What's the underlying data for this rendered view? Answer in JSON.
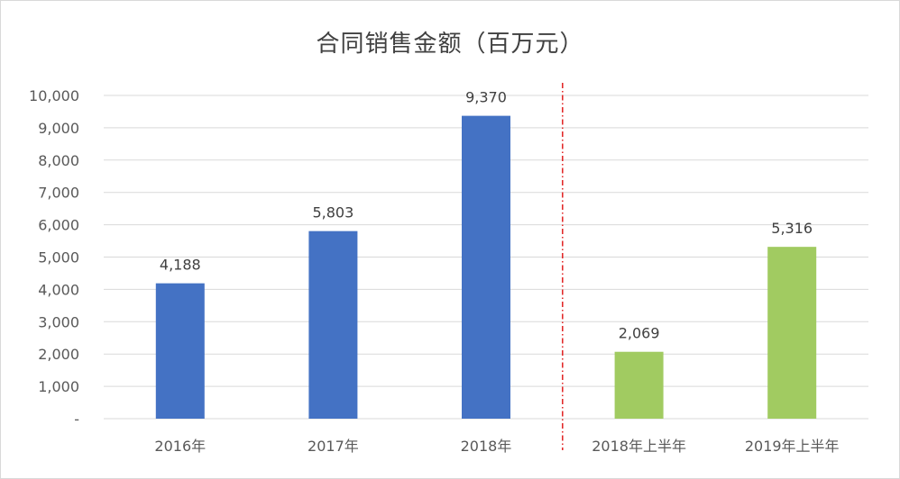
{
  "chart_data": {
    "type": "bar",
    "title": "合同销售金额（百万元）",
    "categories": [
      "2016年",
      "2017年",
      "2018年",
      "2018年上半年",
      "2019年上半年"
    ],
    "values": [
      4188,
      5803,
      9370,
      2069,
      5316
    ],
    "data_labels": [
      "4,188",
      "5,803",
      "9,370",
      "2,069",
      "5,316"
    ],
    "bar_colors": [
      "#4472c4",
      "#4472c4",
      "#4472c4",
      "#a1cb61",
      "#a1cb61"
    ],
    "ylim": [
      0,
      10000
    ],
    "yticks": [
      0,
      1000,
      2000,
      3000,
      4000,
      5000,
      6000,
      7000,
      8000,
      9000,
      10000
    ],
    "ytick_labels": [
      "-",
      "1,000",
      "2,000",
      "3,000",
      "4,000",
      "5,000",
      "6,000",
      "7,000",
      "8,000",
      "9,000",
      "10,000"
    ],
    "grid": true,
    "divider": {
      "after_category_index": 2,
      "color": "#e02020",
      "style": "dash-dot"
    },
    "xlabel": "",
    "ylabel": ""
  }
}
